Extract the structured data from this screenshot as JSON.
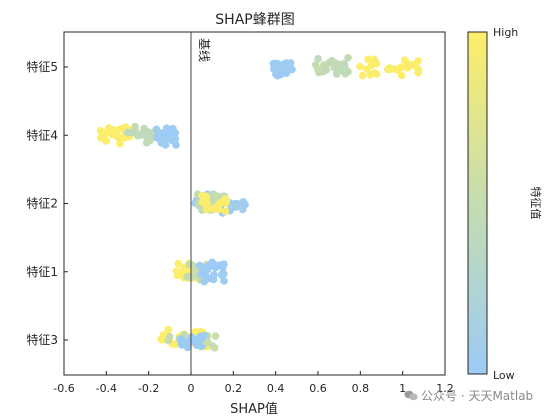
{
  "chart_data": {
    "type": "scatter",
    "title": "SHAP蜂群图",
    "xlabel": "SHAP值",
    "ylabel": "",
    "xlim": [
      -0.6,
      1.2
    ],
    "x_ticks": [
      "-0.6",
      "-0.4",
      "-0.2",
      "0",
      "0.2",
      "0.4",
      "0.6",
      "0.8",
      "1",
      "1.2"
    ],
    "categories": [
      "特征5",
      "特征4",
      "特征2",
      "特征1",
      "特征3"
    ],
    "baseline": {
      "x": 0,
      "label": "基线"
    },
    "colorbar": {
      "high_label": "High",
      "low_label": "Low",
      "title": "特征值",
      "high_color": "#fdee6a",
      "mid_color": "#c5dcb0",
      "low_color": "#9ccbf5"
    },
    "grid": false,
    "series": [
      {
        "feature": "特征5",
        "clusters": [
          {
            "x_range": [
              0.38,
              0.48
            ],
            "count": 28,
            "feature_value": 0.0
          },
          {
            "x_range": [
              0.58,
              0.79
            ],
            "count": 26,
            "feature_value": 0.45
          },
          {
            "x_range": [
              0.78,
              1.08
            ],
            "count": 28,
            "feature_value": 1.0
          }
        ]
      },
      {
        "feature": "特征4",
        "clusters": [
          {
            "x_range": [
              -0.43,
              -0.28
            ],
            "count": 26,
            "feature_value": 1.0
          },
          {
            "x_range": [
              -0.3,
              -0.17
            ],
            "count": 18,
            "feature_value": 0.45
          },
          {
            "x_range": [
              -0.17,
              -0.07
            ],
            "count": 26,
            "feature_value": 0.0
          }
        ]
      },
      {
        "feature": "特征2",
        "clusters": [
          {
            "x_range": [
              0.02,
              0.26
            ],
            "count": 30,
            "feature_value": 0.05
          },
          {
            "x_range": [
              0.03,
              0.17
            ],
            "count": 20,
            "feature_value": 0.5
          },
          {
            "x_range": [
              0.05,
              0.17
            ],
            "count": 20,
            "feature_value": 1.0
          }
        ]
      },
      {
        "feature": "特征1",
        "clusters": [
          {
            "x_range": [
              -0.07,
              0.02
            ],
            "count": 22,
            "feature_value": 1.0
          },
          {
            "x_range": [
              -0.02,
              0.08
            ],
            "count": 18,
            "feature_value": 0.5
          },
          {
            "x_range": [
              0.03,
              0.16
            ],
            "count": 26,
            "feature_value": 0.0
          }
        ]
      },
      {
        "feature": "特征3",
        "clusters": [
          {
            "x_range": [
              -0.15,
              0.1
            ],
            "count": 32,
            "feature_value": 1.0
          },
          {
            "x_range": [
              -0.13,
              0.12
            ],
            "count": 14,
            "feature_value": 0.5
          },
          {
            "x_range": [
              -0.06,
              0.07
            ],
            "count": 16,
            "feature_value": 0.0
          }
        ]
      }
    ]
  },
  "watermark": {
    "text": "公众号 · 天天Matlab",
    "icon": "wechat-icon"
  }
}
